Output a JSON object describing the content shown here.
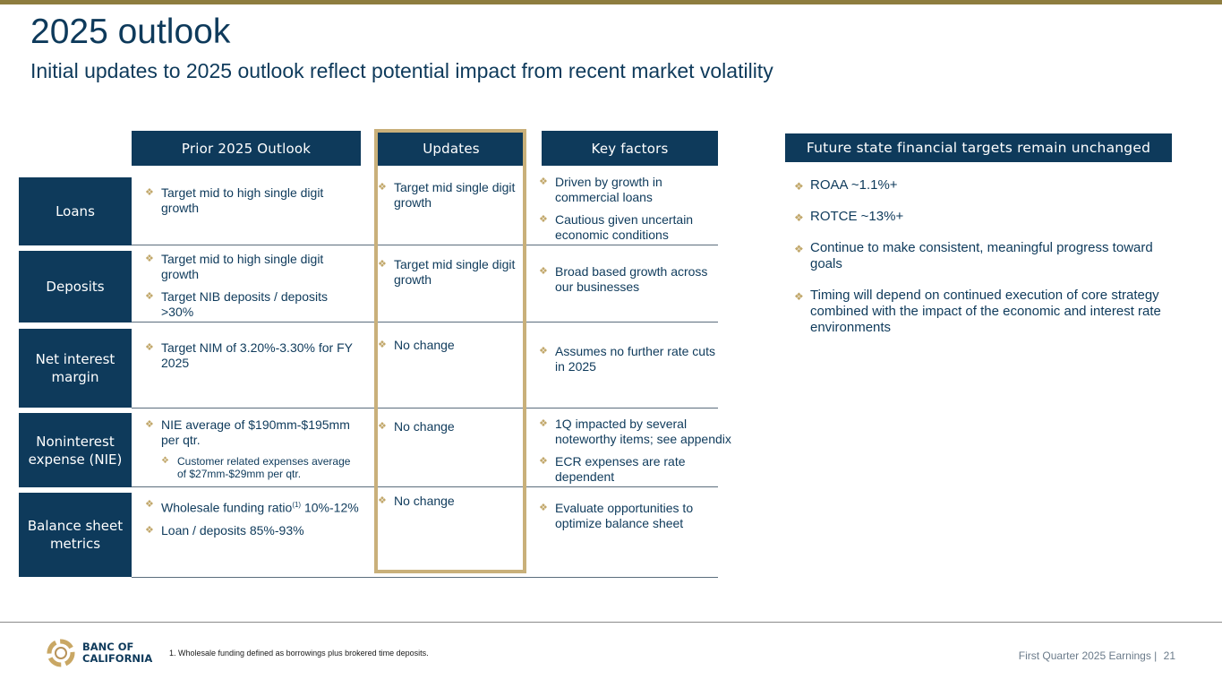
{
  "header": {
    "title": "2025 outlook",
    "subtitle": "Initial updates to 2025 outlook reflect potential impact from recent market volatility"
  },
  "columns": {
    "prior": "Prior 2025 Outlook",
    "updates": "Updates",
    "key_factors": "Key factors",
    "future": "Future state financial targets remain unchanged"
  },
  "rows": [
    {
      "label": "Loans",
      "prior": [
        "Target mid to high single digit growth"
      ],
      "updates": [
        "Target mid single digit growth"
      ],
      "factors": [
        "Driven by growth in commercial loans",
        "Cautious given uncertain economic conditions"
      ]
    },
    {
      "label": "Deposits",
      "prior": [
        "Target mid to high single digit growth",
        "Target NIB deposits / deposits >30%"
      ],
      "updates": [
        "Target mid single digit growth"
      ],
      "factors": [
        "Broad based growth across our businesses"
      ]
    },
    {
      "label": "Net interest margin",
      "prior": [
        "Target NIM of 3.20%-3.30% for FY 2025"
      ],
      "updates": [
        "No change"
      ],
      "factors": [
        "Assumes no further rate cuts in 2025"
      ]
    },
    {
      "label": "Noninterest expense (NIE)",
      "prior": [
        "NIE average of $190mm-$195mm per qtr."
      ],
      "prior_sub": [
        "Customer related expenses average of $27mm-$29mm per qtr."
      ],
      "updates": [
        "No change"
      ],
      "factors": [
        "1Q impacted by several noteworthy items; see appendix",
        "ECR expenses are rate dependent"
      ]
    },
    {
      "label": "Balance sheet metrics",
      "prior_1_text": "Wholesale funding ratio",
      "prior_1_sup": "(1)",
      "prior_1_value": " 10%-12%",
      "prior_2": "Loan / deposits 85%-93%",
      "updates": [
        "No change"
      ],
      "factors": [
        "Evaluate opportunities to optimize balance sheet"
      ]
    }
  ],
  "future_targets": [
    "ROAA ~1.1%+",
    "ROTCE ~13%+",
    "Continue to make consistent, meaningful progress toward goals",
    "Timing will depend on continued execution of core strategy combined with the impact of the economic and interest rate environments"
  ],
  "footer": {
    "footnote": "1.  Wholesale funding defined as borrowings plus brokered time deposits.",
    "page_label": "First Quarter 2025 Earnings |",
    "page_number": "21",
    "logo_line1": "BANC OF",
    "logo_line2": "CALIFORNIA"
  },
  "colors": {
    "navy": "#0e3a5b",
    "gold": "#c9b07a",
    "topbar": "#8e7d3f"
  }
}
